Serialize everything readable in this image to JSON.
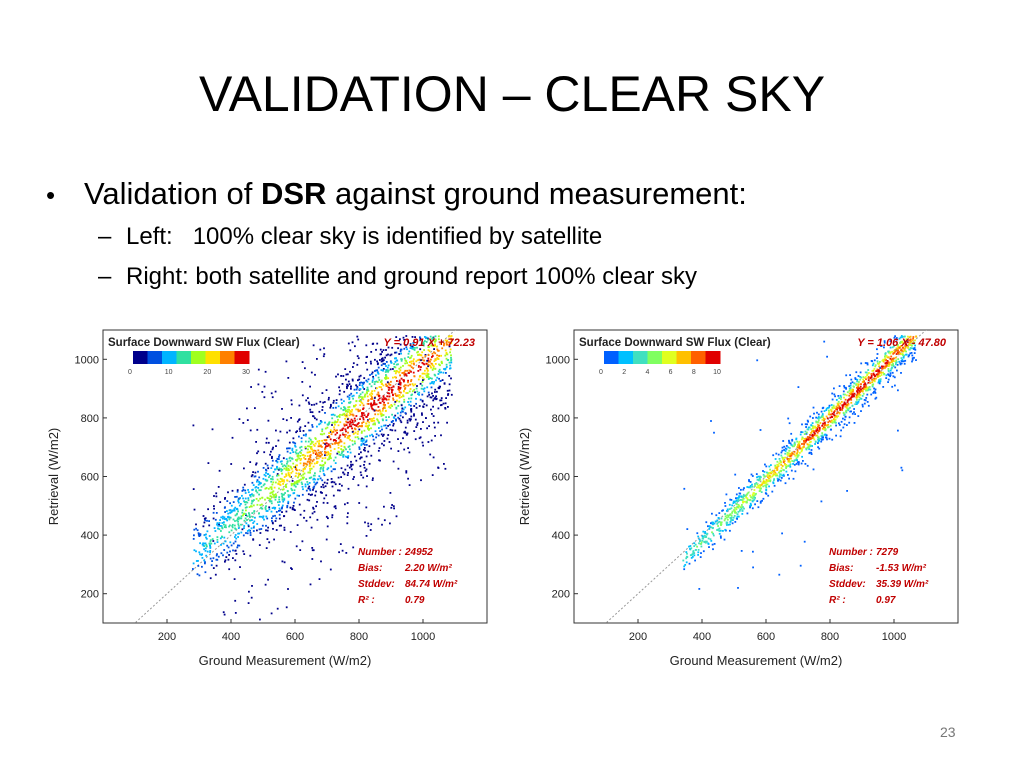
{
  "slide": {
    "title": "VALIDATION – CLEAR SKY",
    "bullet": {
      "prefix": "Validation of ",
      "bold": "DSR",
      "suffix": " against ground measurement:"
    },
    "sub": [
      {
        "text": "Left:   100% clear sky is identified by satellite"
      },
      {
        "text": "Right: both satellite and ground report 100% clear sky"
      }
    ],
    "page_number": "23"
  },
  "chart_data": [
    {
      "type": "scatter",
      "title": "Surface Downward SW Flux (Clear)",
      "xlabel": "Ground Measurement (W/m2)",
      "ylabel": "Retrieval (W/m2)",
      "xlim": [
        0,
        1200
      ],
      "ylim": [
        100,
        1100
      ],
      "xticks": [
        200,
        400,
        600,
        800,
        1000
      ],
      "yticks": [
        200,
        400,
        600,
        800,
        1000
      ],
      "fit": {
        "label": "Y = 0.91 X + 72.23",
        "slope": 0.91,
        "intercept": 72.23
      },
      "colorbar": {
        "ticks": [
          "0",
          "10",
          "20",
          "30"
        ],
        "colors": [
          "#00008b",
          "#0050e0",
          "#00b4ff",
          "#30e0a0",
          "#a0ff20",
          "#ffe000",
          "#ff8000",
          "#e00000"
        ]
      },
      "density": {
        "spread": 95,
        "outlier_fraction": 0.14,
        "x_range": [
          280,
          1090
        ]
      },
      "stats": [
        {
          "label": "Number :",
          "value": "24952"
        },
        {
          "label": "Bias:",
          "value": "2.20 W/m²"
        },
        {
          "label": "Stddev:",
          "value": "84.74 W/m²"
        },
        {
          "label": "R²  :",
          "value": "0.79"
        }
      ],
      "grid": false
    },
    {
      "type": "scatter",
      "title": "Surface Downward SW Flux (Clear)",
      "xlabel": "Ground Measurement (W/m2)",
      "ylabel": "Retrieval (W/m2)",
      "xlim": [
        0,
        1200
      ],
      "ylim": [
        100,
        1100
      ],
      "xticks": [
        200,
        400,
        600,
        800,
        1000
      ],
      "yticks": [
        200,
        400,
        600,
        800,
        1000
      ],
      "fit": {
        "label": "Y = 1.06 X - 47.80",
        "slope": 1.06,
        "intercept": -47.8
      },
      "colorbar": {
        "ticks": [
          "0",
          "2",
          "4",
          "6",
          "8",
          "10"
        ],
        "colors": [
          "#0060ff",
          "#00c0ff",
          "#40e0c0",
          "#80ff60",
          "#e0ff20",
          "#ffc000",
          "#ff6000",
          "#e00000"
        ]
      },
      "density": {
        "spread": 35,
        "outlier_fraction": 0.03,
        "x_range": [
          340,
          1070
        ]
      },
      "stats": [
        {
          "label": "Number :",
          "value": "7279"
        },
        {
          "label": "Bias:",
          "value": "-1.53 W/m²"
        },
        {
          "label": "Stddev:",
          "value": "35.39 W/m²"
        },
        {
          "label": "R²  :",
          "value": "0.97"
        }
      ],
      "grid": false
    }
  ]
}
